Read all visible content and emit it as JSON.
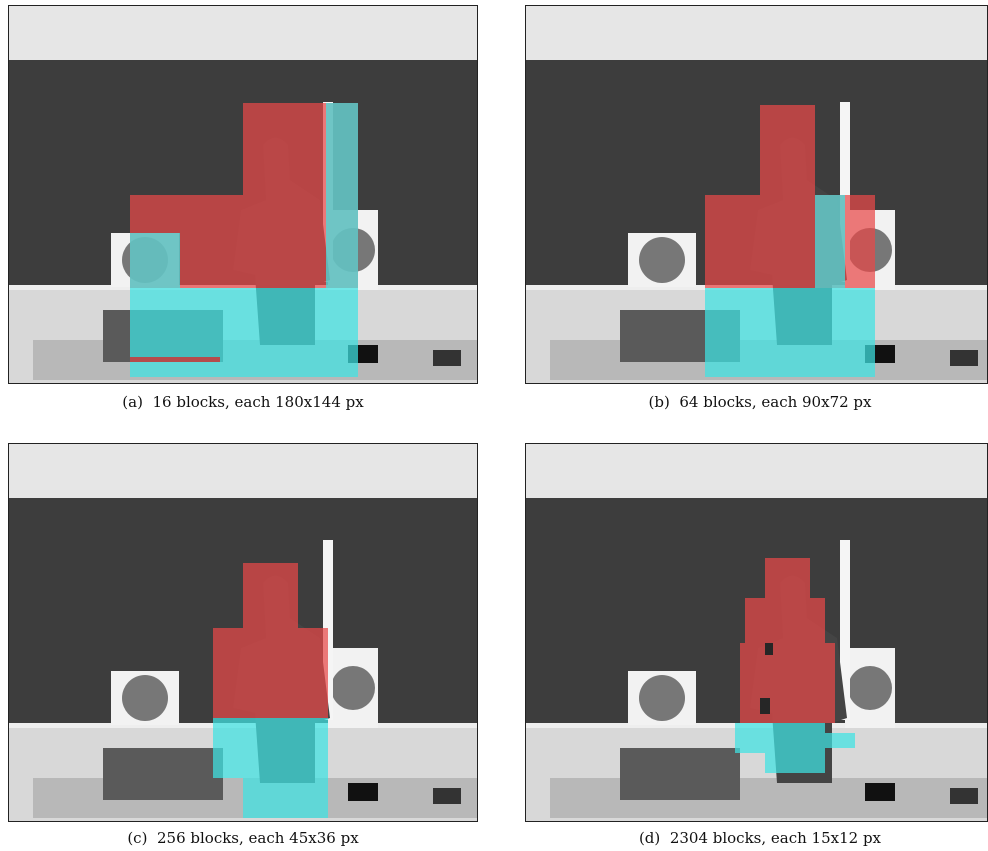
{
  "panels": [
    {
      "label": "(a)",
      "caption": "16 blocks, each 180x144 px"
    },
    {
      "label": "(b)",
      "caption": "64 blocks, each 90x72 px"
    },
    {
      "label": "(c)",
      "caption": "256 blocks, each 45x36 px"
    },
    {
      "label": "(d)",
      "caption": "2304 blocks, each 15x12 px"
    }
  ]
}
